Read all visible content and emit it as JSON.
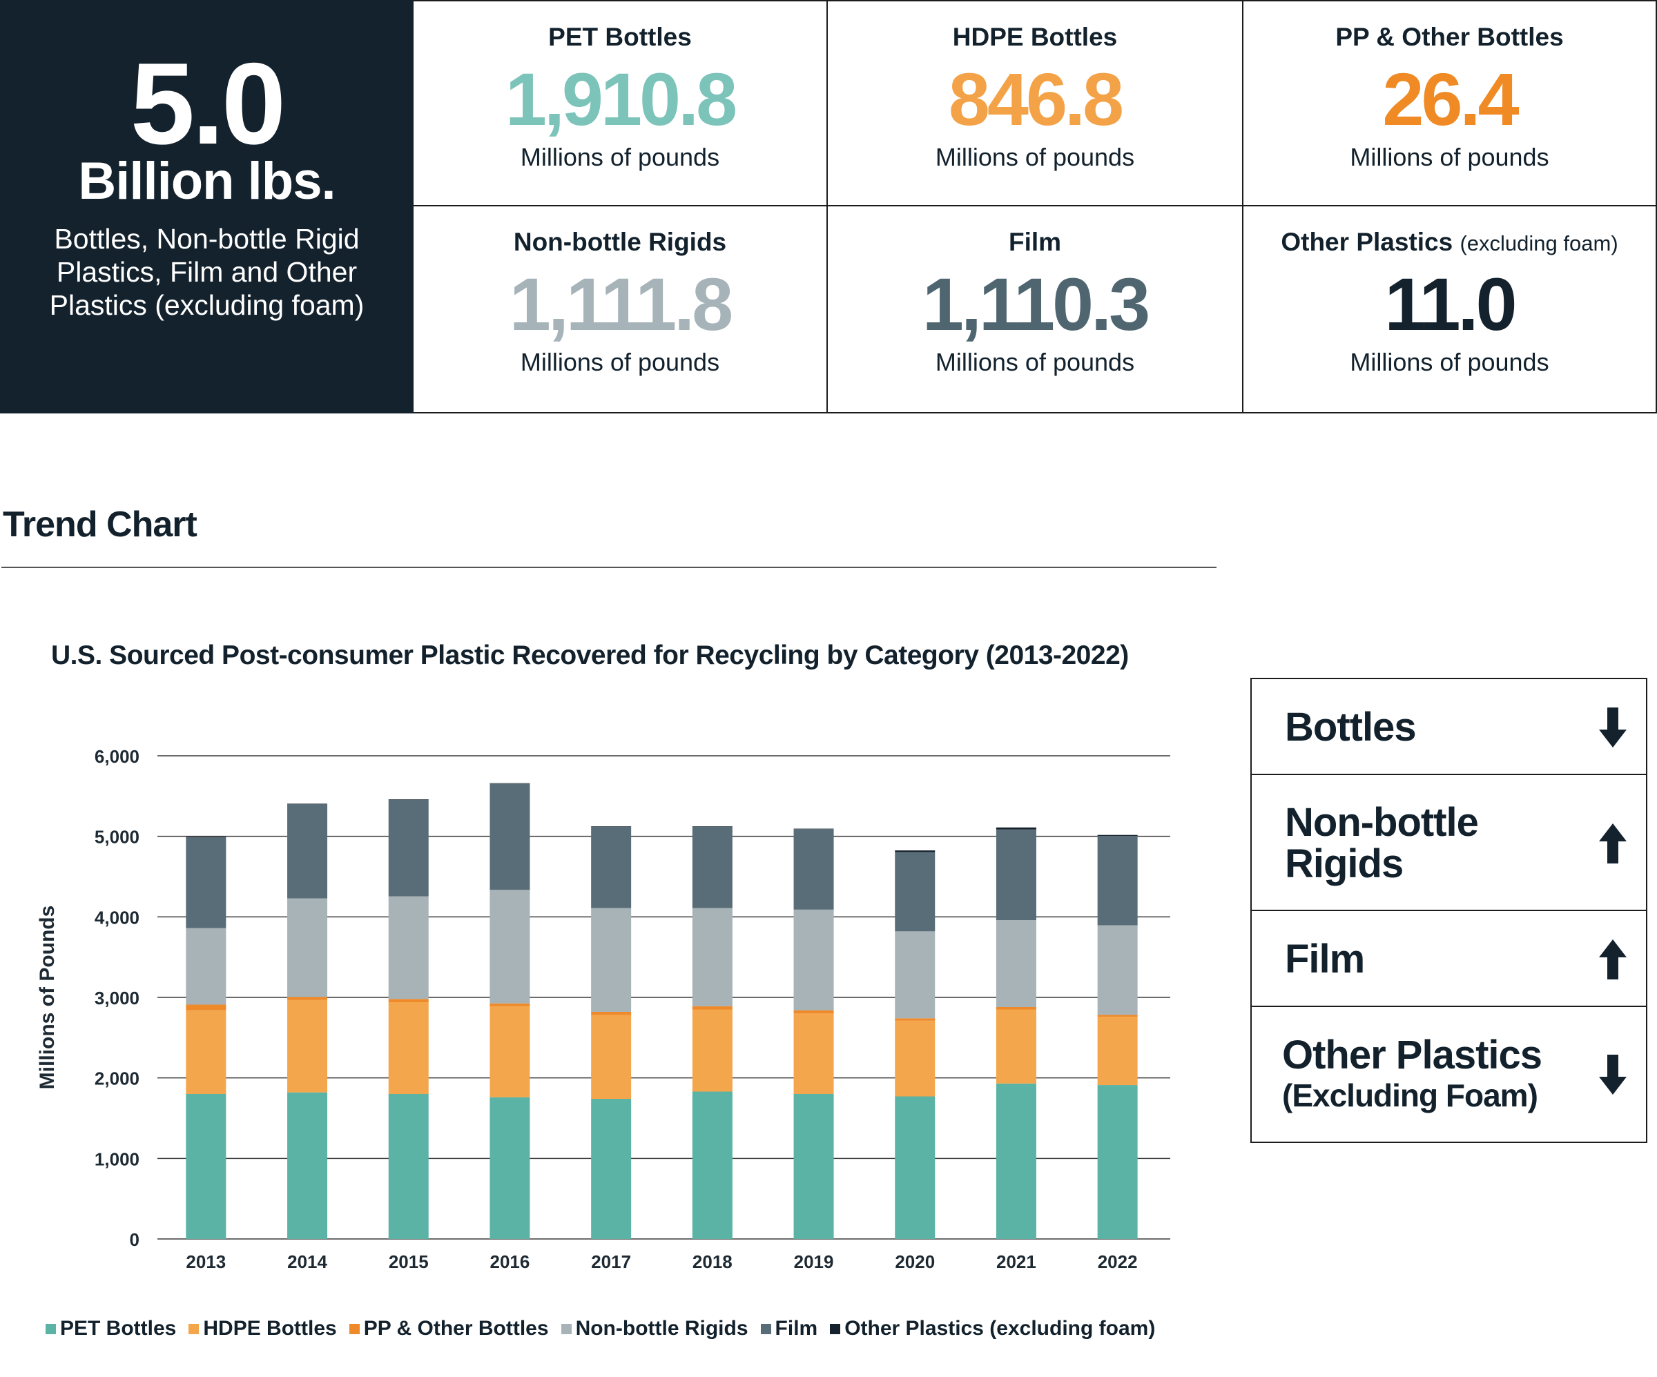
{
  "summary": {
    "total_value": "5.0",
    "total_unit": "Billion lbs.",
    "total_description": "Bottles, Non-bottle Rigid Plastics, Film and Other Plastics (excluding foam)",
    "cards": [
      {
        "title": "PET Bottles",
        "title_note": "",
        "value": "1,910.8",
        "unit": "Millions of pounds",
        "color": "#7cc3b9"
      },
      {
        "title": "HDPE Bottles",
        "title_note": "",
        "value": "846.8",
        "unit": "Millions of pounds",
        "color": "#f3a247"
      },
      {
        "title": "PP & Other Bottles",
        "title_note": "",
        "value": "26.4",
        "unit": "Millions of pounds",
        "color": "#ef8a24"
      },
      {
        "title": "Non-bottle Rigids",
        "title_note": "",
        "value": "1,111.8",
        "unit": "Millions of pounds",
        "color": "#a6b3b8"
      },
      {
        "title": "Film",
        "title_note": "",
        "value": "1,110.3",
        "unit": "Millions of pounds",
        "color": "#4f6671"
      },
      {
        "title": "Other Plastics",
        "title_note": "(excluding foam)",
        "value": "11.0",
        "unit": "Millions of pounds",
        "color": "#14222d"
      }
    ]
  },
  "section": {
    "title": "Trend Chart"
  },
  "chart_data": {
    "type": "bar",
    "stacked": true,
    "title": "U.S. Sourced Post-consumer Plastic Recovered for Recycling by Category (2013-2022)",
    "xlabel": "",
    "ylabel": "Millions of Pounds",
    "ylim": [
      0,
      6000
    ],
    "yticks": [
      "0",
      "1,000",
      "2,000",
      "3,000",
      "4,000",
      "5,000",
      "6,000"
    ],
    "grid": true,
    "legend_position": "bottom",
    "categories": [
      "2013",
      "2014",
      "2015",
      "2016",
      "2017",
      "2018",
      "2019",
      "2020",
      "2021",
      "2022"
    ],
    "series": [
      {
        "name": "PET Bottles",
        "color": "#5bb3a6",
        "values": [
          1800,
          1820,
          1800,
          1760,
          1740,
          1830,
          1800,
          1770,
          1930,
          1911
        ]
      },
      {
        "name": "HDPE Bottles",
        "color": "#f4a64c",
        "values": [
          1040,
          1150,
          1140,
          1130,
          1040,
          1020,
          1000,
          940,
          920,
          847
        ]
      },
      {
        "name": "PP & Other Bottles",
        "color": "#ee8a2a",
        "values": [
          70,
          35,
          40,
          35,
          40,
          40,
          40,
          30,
          30,
          26
        ]
      },
      {
        "name": "Non-bottle Rigids",
        "color": "#a7b3b7",
        "values": [
          950,
          1225,
          1275,
          1410,
          1290,
          1220,
          1250,
          1080,
          1080,
          1112
        ]
      },
      {
        "name": "Film",
        "color": "#586d77",
        "values": [
          1130,
          1170,
          1200,
          1320,
          1010,
          1010,
          1000,
          985,
          1125,
          1110
        ]
      },
      {
        "name": "Other Plastics (excluding foam)",
        "color": "#15212c",
        "values": [
          5,
          5,
          5,
          5,
          5,
          5,
          5,
          20,
          25,
          11
        ]
      }
    ]
  },
  "trend_table": {
    "rows": [
      {
        "label": "Bottles",
        "sub": "",
        "direction": "down"
      },
      {
        "label": "Non-bottle Rigids",
        "sub": "",
        "direction": "up"
      },
      {
        "label": "Film",
        "sub": "",
        "direction": "up"
      },
      {
        "label": "Other Plastics",
        "sub": "(Excluding Foam)",
        "direction": "down"
      }
    ]
  }
}
